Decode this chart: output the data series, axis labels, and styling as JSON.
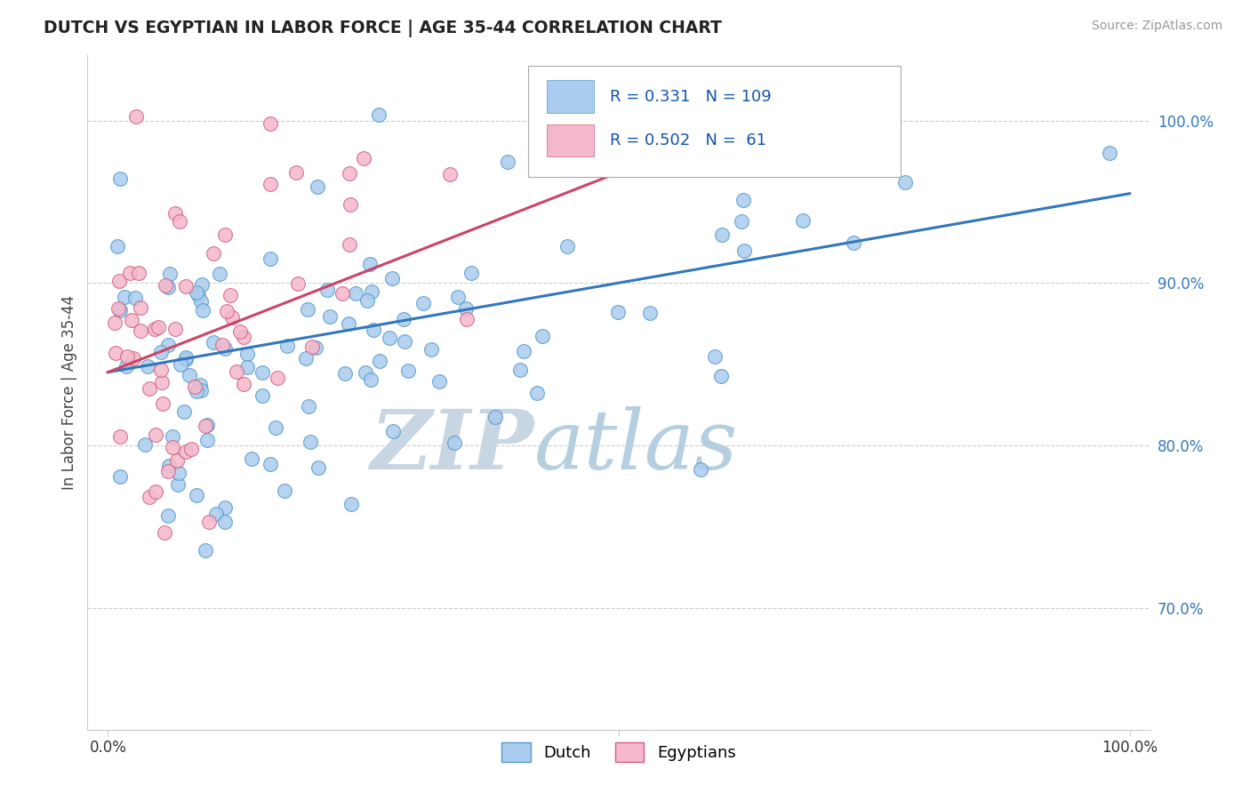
{
  "title": "DUTCH VS EGYPTIAN IN LABOR FORCE | AGE 35-44 CORRELATION CHART",
  "source_text": "Source: ZipAtlas.com",
  "ylabel_text": "In Labor Force | Age 35-44",
  "xlim": [
    -0.02,
    1.02
  ],
  "ylim": [
    0.625,
    1.04
  ],
  "ytick_labels": [
    "70.0%",
    "80.0%",
    "90.0%",
    "100.0%"
  ],
  "ytick_values": [
    0.7,
    0.8,
    0.9,
    1.0
  ],
  "xtick_labels": [
    "0.0%",
    "",
    "100.0%"
  ],
  "xtick_values": [
    0.0,
    0.5,
    1.0
  ],
  "dutch_color": "#aaccee",
  "dutch_edge_color": "#5599cc",
  "egyptian_color": "#f5b8cb",
  "egyptian_edge_color": "#d06080",
  "dutch_R": 0.331,
  "dutch_N": 109,
  "egyptian_R": 0.502,
  "egyptian_N": 61,
  "trend_dutch_color": "#3377bb",
  "trend_egyptian_color": "#cc4466",
  "watermark_zip": "ZIP",
  "watermark_atlas": "atlas",
  "watermark_color_zip": "#c5d8e8",
  "watermark_color_atlas": "#b8cfe8",
  "legend_R_color": "#1155aa",
  "background_color": "#ffffff",
  "grid_color": "#cccccc",
  "right_tick_color": "#3377bb",
  "dutch_trend_start_y": 0.845,
  "dutch_trend_end_y": 0.955,
  "egyptian_trend_start_y": 0.845,
  "egyptian_trend_end_y": 1.005
}
